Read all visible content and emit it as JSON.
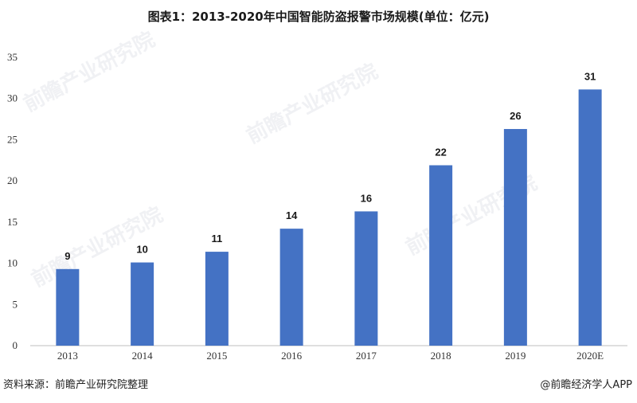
{
  "chart_data": {
    "type": "bar",
    "title": "图表1：2013-2020年中国智能防盗报警市场规模(单位：亿元)",
    "categories": [
      "2013",
      "2014",
      "2015",
      "2016",
      "2017",
      "2018",
      "2019",
      "2020E"
    ],
    "values": [
      9.3,
      10.1,
      11.4,
      14.2,
      16.3,
      21.9,
      26.3,
      31.1
    ],
    "data_labels": [
      "9",
      "10",
      "11",
      "14",
      "16",
      "22",
      "26",
      "31"
    ],
    "ylim": [
      0,
      35
    ],
    "yticks": [
      0,
      5,
      10,
      15,
      20,
      25,
      30,
      35
    ],
    "xlabel": "",
    "ylabel": "",
    "grid": false,
    "bar_color": "#4472c4"
  },
  "watermark": "前瞻产业研究院",
  "footer": {
    "source": "资料来源：前瞻产业研究院整理",
    "brand": "@前瞻经济学人APP"
  }
}
